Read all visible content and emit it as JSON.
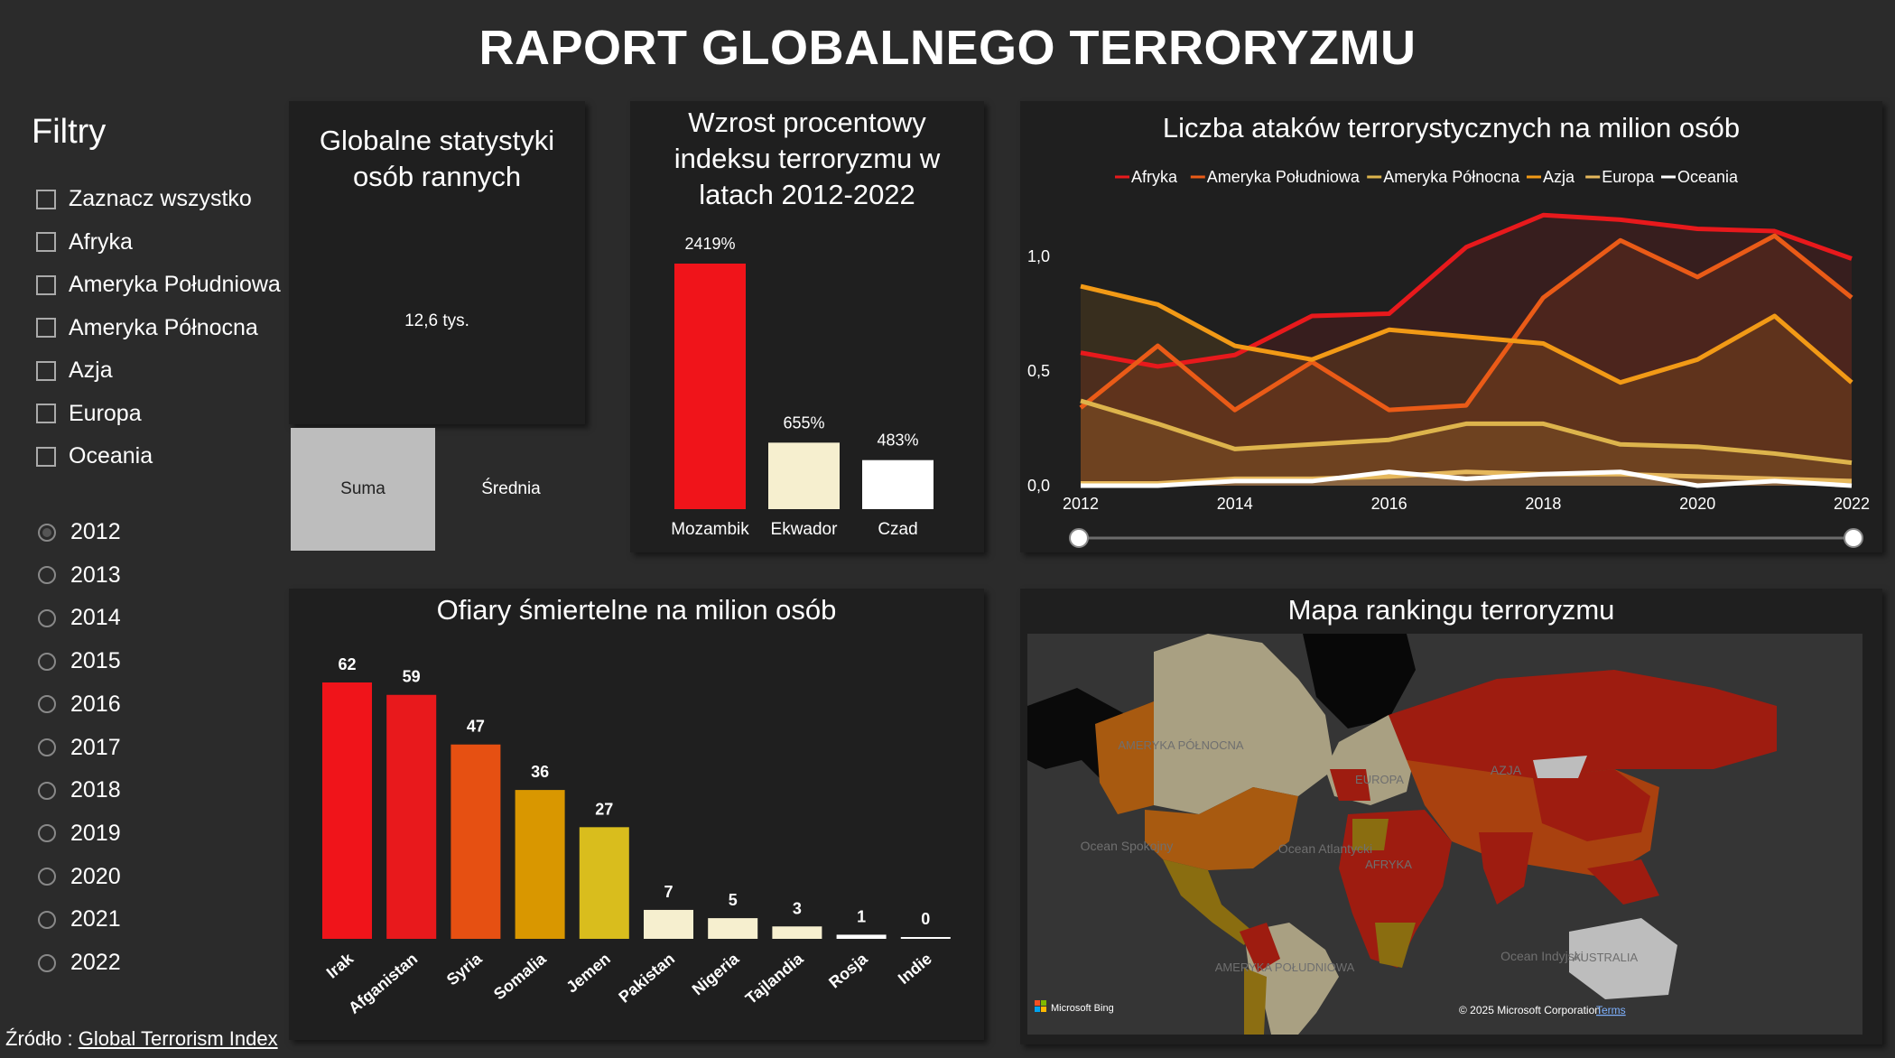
{
  "title": "RAPORT GLOBALNEGO TERRORYZMU",
  "filters": {
    "heading": "Filtry",
    "checkboxes": [
      "Zaznacz wszystko",
      "Afryka",
      "Ameryka Południowa",
      "Ameryka Północna",
      "Azja",
      "Europa",
      "Oceania"
    ],
    "years": [
      "2012",
      "2013",
      "2014",
      "2015",
      "2016",
      "2017",
      "2018",
      "2019",
      "2020",
      "2021",
      "2022"
    ],
    "selected_year": "2012"
  },
  "source": {
    "label": "Źródło : ",
    "link": "Global Terrorism Index"
  },
  "injured": {
    "title": "Globalne statystyki osób rannych",
    "value": "12,6 tys.",
    "buttons": [
      "Suma",
      "Średnia"
    ]
  },
  "growth": {
    "title": "Wzrost procentowy indeksu terroryzmu w latach 2012-2022",
    "chart_data": {
      "type": "bar",
      "categories": [
        "Mozambik",
        "Ekwador",
        "Czad"
      ],
      "values": [
        2419,
        655,
        483
      ],
      "labels": [
        "2419%",
        "655%",
        "483%"
      ],
      "colors": [
        "#f0141a",
        "#f6efcf",
        "#ffffff"
      ]
    }
  },
  "attacks": {
    "title": "Liczba ataków terrorystycznych na milion osób",
    "chart_data": {
      "type": "area",
      "x": [
        2012,
        2013,
        2014,
        2015,
        2016,
        2017,
        2018,
        2019,
        2020,
        2021,
        2022
      ],
      "xticks": [
        "2012",
        "2014",
        "2016",
        "2018",
        "2020",
        "2022"
      ],
      "yticks": [
        "0,0",
        "0,5",
        "1,0"
      ],
      "ylim": [
        0,
        1.2
      ],
      "series": [
        {
          "name": "Afryka",
          "color": "#e8191c",
          "values": [
            0.58,
            0.52,
            0.57,
            0.74,
            0.75,
            1.04,
            1.18,
            1.16,
            1.12,
            1.11,
            0.99
          ]
        },
        {
          "name": "Ameryka Południowa",
          "color": "#ea5b17",
          "values": [
            0.34,
            0.61,
            0.33,
            0.54,
            0.33,
            0.35,
            0.82,
            1.07,
            0.91,
            1.09,
            0.82
          ]
        },
        {
          "name": "Ameryka Północna",
          "color": "#ddb44c",
          "values": [
            0.37,
            0.27,
            0.16,
            0.18,
            0.2,
            0.27,
            0.27,
            0.18,
            0.17,
            0.14,
            0.1
          ]
        },
        {
          "name": "Azja",
          "color": "#f29a16",
          "values": [
            0.87,
            0.79,
            0.61,
            0.55,
            0.68,
            0.65,
            0.62,
            0.45,
            0.55,
            0.74,
            0.45
          ]
        },
        {
          "name": "Europa",
          "color": "#e6b85c",
          "values": [
            0.01,
            0.01,
            0.03,
            0.03,
            0.04,
            0.06,
            0.05,
            0.05,
            0.04,
            0.03,
            0.02
          ]
        },
        {
          "name": "Oceania",
          "color": "#ffffff",
          "values": [
            0.0,
            0.0,
            0.02,
            0.02,
            0.06,
            0.03,
            0.05,
            0.06,
            0.0,
            0.02,
            0.0
          ]
        }
      ]
    }
  },
  "deaths": {
    "title": "Ofiary śmiertelne na milion osób",
    "chart_data": {
      "type": "bar",
      "categories": [
        "Irak",
        "Afganistan",
        "Syria",
        "Somalia",
        "Jemen",
        "Pakistan",
        "Nigeria",
        "Tajlandia",
        "Rosja",
        "Indie"
      ],
      "values": [
        62,
        59,
        47,
        36,
        27,
        7,
        5,
        3,
        1,
        0
      ],
      "colors": [
        "#f0141a",
        "#e8191c",
        "#e65012",
        "#d99700",
        "#d9bd1d",
        "#f6efcf",
        "#f6efcf",
        "#f6efcf",
        "#ffffff",
        "#ffffff"
      ]
    }
  },
  "map": {
    "title": "Mapa rankingu terroryzmu",
    "labels": {
      "na": "AMERYKA PÓŁNOCNA",
      "sa": "AMERYKA POŁUDNIOWA",
      "eu": "EUROPA",
      "as": "AZJA",
      "af": "AFRYKA",
      "au": "AUSTRALIA",
      "pacific": "Ocean Spokojny",
      "atlantic": "Ocean Atlantycki",
      "indian": "Ocean Indyjski"
    },
    "bing": "Microsoft Bing",
    "copyright": "© 2025 Microsoft Corporation",
    "terms": "Terms"
  }
}
